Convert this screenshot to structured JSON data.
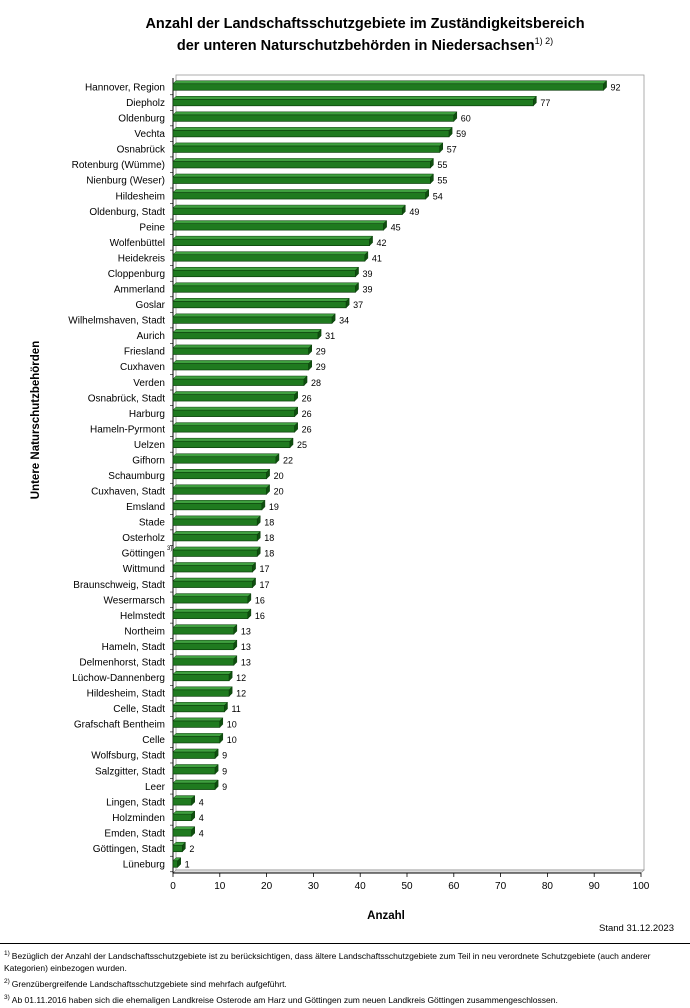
{
  "title_line1": "Anzahl der Landschaftsschutzgebiete im Zuständigkeitsbereich",
  "title_line2": "der unteren Naturschutzbehörden in Niedersachsen",
  "title_sup": "1) 2)",
  "stand": "Stand 31.12.2023",
  "footnotes": [
    {
      "mark": "1)",
      "text": "Bezüglich der Anzahl der Landschaftsschutzgebiete ist zu berücksichtigen, dass ältere Landschaftsschutzgebiete zum Teil in neu verordnete Schutzgebiete (auch anderer Kategorien) einbezogen wurden."
    },
    {
      "mark": "2)",
      "text": "Grenzübergreifende Landschaftsschutzgebiete sind mehrfach aufgeführt."
    },
    {
      "mark": "3)",
      "text": "Ab 01.11.2016 haben sich die ehemaligen Landkreise Osterode am Harz und Göttingen zum neuen Landkreis Göttingen zusammengeschlossen."
    }
  ],
  "chart_data": {
    "type": "bar",
    "orientation": "horizontal",
    "xlabel": "Anzahl",
    "ylabel": "Untere Naturschutzbehörden",
    "xlim": [
      0,
      100
    ],
    "xticks": [
      0,
      10,
      20,
      30,
      40,
      50,
      60,
      70,
      80,
      90,
      100
    ],
    "grid": false,
    "bar_color": "#1f7a1f",
    "categories": [
      "Hannover, Region",
      "Diepholz",
      "Oldenburg",
      "Vechta",
      "Osnabrück",
      "Rotenburg (Wümme)",
      "Nienburg (Weser)",
      "Hildesheim",
      "Oldenburg, Stadt",
      "Peine",
      "Wolfenbüttel",
      "Heidekreis",
      "Cloppenburg",
      "Ammerland",
      "Goslar",
      "Wilhelmshaven, Stadt",
      "Aurich",
      "Friesland",
      "Cuxhaven",
      "Verden",
      "Osnabrück, Stadt",
      "Harburg",
      "Hameln-Pyrmont",
      "Uelzen",
      "Gifhorn",
      "Schaumburg",
      "Cuxhaven, Stadt",
      "Emsland",
      "Stade",
      "Osterholz",
      "Göttingen",
      "Wittmund",
      "Braunschweig, Stadt",
      "Wesermarsch",
      "Helmstedt",
      "Northeim",
      "Hameln, Stadt",
      "Delmenhorst, Stadt",
      "Lüchow-Dannenberg",
      "Hildesheim, Stadt",
      "Celle, Stadt",
      "Grafschaft Bentheim",
      "Celle",
      "Wolfsburg, Stadt",
      "Salzgitter, Stadt",
      "Leer",
      "Lingen, Stadt",
      "Holzminden",
      "Emden, Stadt",
      "Göttingen, Stadt",
      "Lüneburg"
    ],
    "category_notes": {
      "Göttingen": "3)"
    },
    "values": [
      92,
      77,
      60,
      59,
      57,
      55,
      55,
      54,
      49,
      45,
      42,
      41,
      39,
      39,
      37,
      34,
      31,
      29,
      29,
      28,
      26,
      26,
      26,
      25,
      22,
      20,
      20,
      19,
      18,
      18,
      18,
      17,
      17,
      16,
      16,
      13,
      13,
      13,
      12,
      12,
      11,
      10,
      10,
      9,
      9,
      9,
      4,
      4,
      4,
      2,
      1
    ]
  }
}
